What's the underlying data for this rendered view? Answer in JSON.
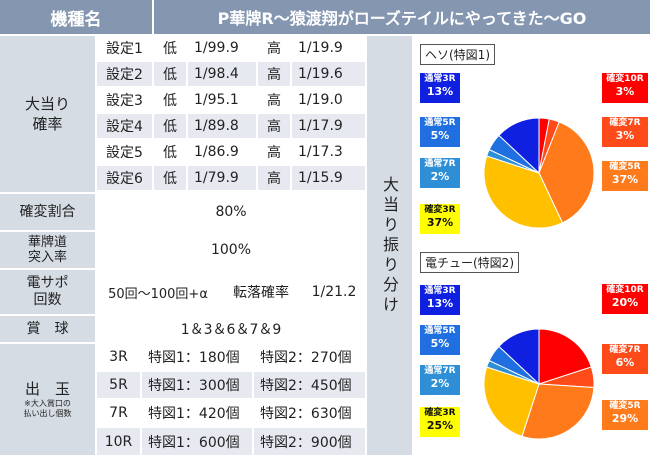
{
  "header": {
    "label": "機種名",
    "title": "P華牌R～猿渡翔がローズテイルにやってきた～GO"
  },
  "jackpot": {
    "label_line1": "大当り",
    "label_line2": "確率",
    "rows": [
      {
        "setting": "設定1",
        "low_label": "低",
        "low": "1/99.9",
        "high_label": "高",
        "high": "1/19.9"
      },
      {
        "setting": "設定2",
        "low_label": "低",
        "low": "1/98.4",
        "high_label": "高",
        "high": "1/19.6"
      },
      {
        "setting": "設定3",
        "low_label": "低",
        "low": "1/95.1",
        "high_label": "高",
        "high": "1/19.0"
      },
      {
        "setting": "設定4",
        "low_label": "低",
        "low": "1/89.8",
        "high_label": "高",
        "high": "1/17.9"
      },
      {
        "setting": "設定5",
        "low_label": "低",
        "low": "1/86.9",
        "high_label": "高",
        "high": "1/17.3"
      },
      {
        "setting": "設定6",
        "low_label": "低",
        "low": "1/79.9",
        "high_label": "高",
        "high": "1/15.9"
      }
    ]
  },
  "kakuhen": {
    "label": "確変割合",
    "value": "80%"
  },
  "hanpai": {
    "label_line1": "華牌道",
    "label_line2": "突入率",
    "value": "100%"
  },
  "densapo": {
    "label_line1": "電サポ",
    "label_line2": "回数",
    "value": "50回～100回+α",
    "tenraku_label": "転落確率",
    "tenraku_value": "1/21.2"
  },
  "shokyu": {
    "label": "賞　球",
    "value": "1＆3＆6＆7＆9"
  },
  "dedama": {
    "label": "出　玉",
    "note_line1": "※大入賞口の",
    "note_line2": "払い出し個数",
    "rows": [
      {
        "round": "3R",
        "z1": "特図1：180個",
        "z2": "特図2：270個"
      },
      {
        "round": "5R",
        "z1": "特図1：300個",
        "z2": "特図2：450個"
      },
      {
        "round": "7R",
        "z1": "特図1：420個",
        "z2": "特図2：630個"
      },
      {
        "round": "10R",
        "z1": "特図1：600個",
        "z2": "特図2：900個"
      }
    ]
  },
  "furiwake_label": "大当り振り分け",
  "chart_data": [
    {
      "type": "pie",
      "title": "ヘソ(特図1)",
      "slices": [
        {
          "label": "確変10R",
          "value": 3,
          "pct": "3%",
          "color": "#ff0000"
        },
        {
          "label": "確変7R",
          "value": 3,
          "pct": "3%",
          "color": "#ff4a1a"
        },
        {
          "label": "確変5R",
          "value": 37,
          "pct": "37%",
          "color": "#ff7a1a"
        },
        {
          "label": "確変3R",
          "value": 37,
          "pct": "37%",
          "color": "#ffc000"
        },
        {
          "label": "通常7R",
          "value": 2,
          "pct": "2%",
          "color": "#2e8fd6"
        },
        {
          "label": "通常5R",
          "value": 5,
          "pct": "5%",
          "color": "#1f6fe0"
        },
        {
          "label": "通常3R",
          "value": 13,
          "pct": "13%",
          "color": "#1020e0"
        }
      ]
    },
    {
      "type": "pie",
      "title": "電チュー(特図2)",
      "slices": [
        {
          "label": "確変10R",
          "value": 20,
          "pct": "20%",
          "color": "#ff0000"
        },
        {
          "label": "確変7R",
          "value": 6,
          "pct": "6%",
          "color": "#ff4a1a"
        },
        {
          "label": "確変5R",
          "value": 29,
          "pct": "29%",
          "color": "#ff7a1a"
        },
        {
          "label": "確変3R",
          "value": 25,
          "pct": "25%",
          "color": "#ffc000"
        },
        {
          "label": "通常7R",
          "value": 2,
          "pct": "2%",
          "color": "#2e8fd6"
        },
        {
          "label": "通常5R",
          "value": 5,
          "pct": "5%",
          "color": "#1f6fe0"
        },
        {
          "label": "通常3R",
          "value": 13,
          "pct": "13%",
          "color": "#1020e0"
        }
      ]
    }
  ]
}
